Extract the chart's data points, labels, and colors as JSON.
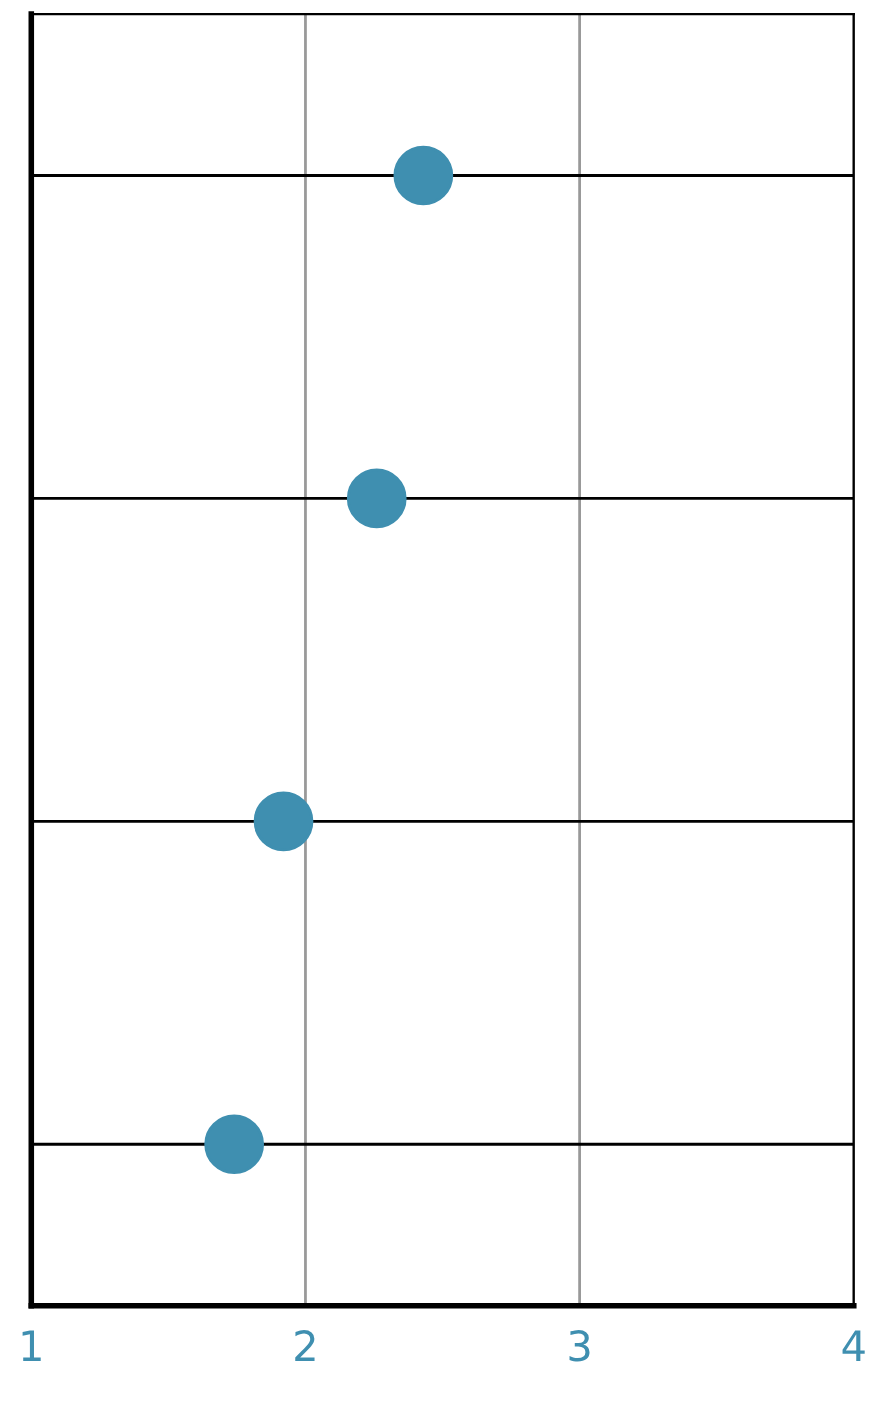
{
  "chart_data": {
    "type": "scatter",
    "orientation": "horizontal",
    "categories": [
      null,
      null,
      null,
      null
    ],
    "series": [
      {
        "color": "#3f8fb0",
        "values": [
          2.43,
          2.26,
          1.92,
          1.74
        ]
      }
    ],
    "xlim": [
      1,
      4
    ],
    "xticks": [
      1,
      2,
      3,
      4
    ],
    "grid": true,
    "marker": "circle"
  }
}
